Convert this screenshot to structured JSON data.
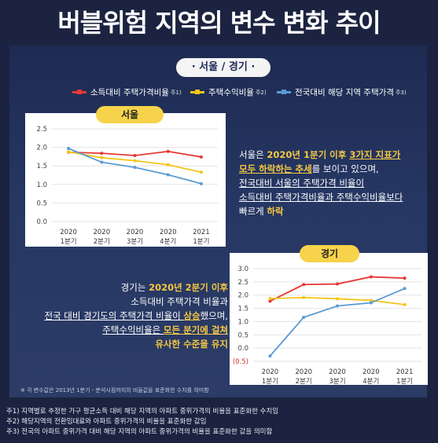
{
  "title": "버블위험 지역의 변수 변화 추이",
  "region_label": "· 서울 / 경기 ·",
  "legend": [
    {
      "name": "소득대비 주택가격비율",
      "note": "주1)",
      "color": "#e53935"
    },
    {
      "name": "주택수익비율",
      "note": "주2)",
      "color": "#f5c518"
    },
    {
      "name": "전국대비 해당 지역 주택가격",
      "note": "주3)",
      "color": "#5b9bd5"
    }
  ],
  "chart_data": [
    {
      "type": "line",
      "title": "서울",
      "categories": [
        "2020\n1분기",
        "2020\n2분기",
        "2020\n3분기",
        "2020\n4분기",
        "2021\n1분기"
      ],
      "ylim": [
        0,
        2.5
      ],
      "yticks": [
        "0.0",
        "0.5",
        "1.0",
        "1.5",
        "2.0",
        "2.5"
      ],
      "series": [
        {
          "name": "소득대비 주택가격비율",
          "color": "#e53935",
          "values": [
            1.87,
            1.84,
            1.78,
            1.89,
            1.74
          ]
        },
        {
          "name": "주택수익비율",
          "color": "#f5c518",
          "values": [
            1.88,
            1.72,
            1.64,
            1.53,
            1.33
          ]
        },
        {
          "name": "전국대비 해당 지역 주택가격",
          "color": "#5b9bd5",
          "values": [
            1.97,
            1.6,
            1.46,
            1.26,
            1.02
          ]
        }
      ]
    },
    {
      "type": "line",
      "title": "경기",
      "categories": [
        "2020\n1분기",
        "2020\n2분기",
        "2020\n3분기",
        "2020\n4분기",
        "2021\n1분기"
      ],
      "ylim": [
        -0.5,
        3.0
      ],
      "yticks": [
        "(0.5)",
        "0.0",
        "0.5",
        "1.0",
        "1.5",
        "2.0",
        "2.5",
        "3.0"
      ],
      "series": [
        {
          "name": "소득대비 주택가격비율",
          "color": "#e53935",
          "values": [
            1.77,
            2.4,
            2.42,
            2.69,
            2.64
          ]
        },
        {
          "name": "주택수익비율",
          "color": "#f5c518",
          "values": [
            1.87,
            1.91,
            1.86,
            1.8,
            1.64
          ]
        },
        {
          "name": "전국대비 해당 지역 주택가격",
          "color": "#5b9bd5",
          "values": [
            -0.3,
            1.16,
            1.59,
            1.71,
            2.25
          ]
        }
      ]
    }
  ],
  "seoul_desc": {
    "l1a": "서울은 ",
    "l1b": "2020년 1분기 이후 ",
    "l1c": "3가지 지표가",
    "l2a": "모두 하락하는 추세",
    "l2b": "를 보이고 있으며,",
    "l3": "전국대비 서울의 주택가격 비율이",
    "l4": "소득대비 주택가격비율과 주택수익비율보다",
    "l5a": "빠르게 ",
    "l5b": "하락"
  },
  "gyeonggi_desc": {
    "l1a": "경기는 ",
    "l1b": "2020년 2분기 이후",
    "l2": "소득대비 주택가격 비율과",
    "l3a": "전국 대비 경기도의 주택가격 비율이 ",
    "l3b": "상승",
    "l3c": "했으며,",
    "l4a": "주택수익비율은 ",
    "l4b": "모든 분기에 걸쳐",
    "l5": "유사한 수준을 유지"
  },
  "footnote": "※ 각 변수값은 2013년 1분기 - 분석시점까지의 비율값을 표준화한 수치를 의미함",
  "notes": [
    "주1) 지역별로 추정한 가구 평균소득 대비 해당 지역의 아파트 중위가격의 비율을 표준화한 수치임",
    "주2) 해당지역의 전환임대료와 아파트 중위가격의 비율을 표준화한 값임",
    "주3) 전국의 아파트 중위가격 대비 해당 지역의 아파트 중위가격의 비율을 표준화한 값을 의미함"
  ]
}
